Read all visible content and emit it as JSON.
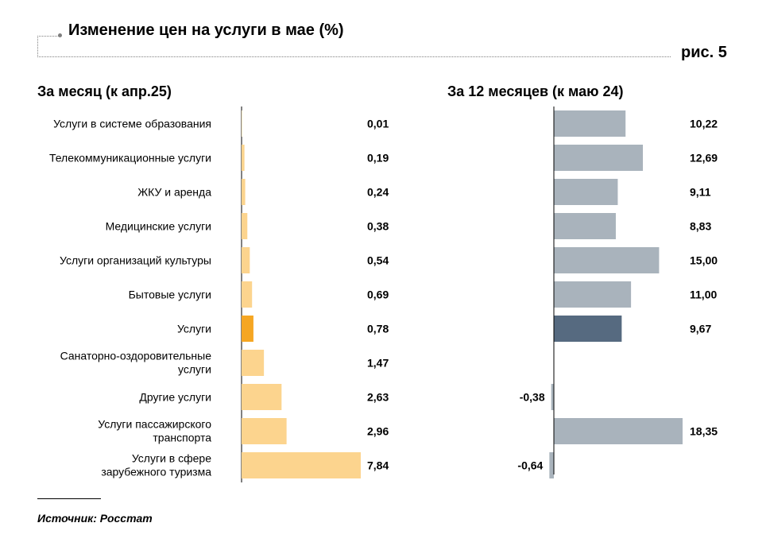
{
  "header": {
    "title": "Изменение цен на услуги в мае (%)",
    "figure_label": "рис. 5"
  },
  "footer": {
    "source": "Источник: Росстат"
  },
  "colors": {
    "monthly_bar": "#fcd48e",
    "monthly_highlight": "#f5a623",
    "yearly_bar": "#a9b3bc",
    "yearly_highlight": "#566a80",
    "axis": "#000000"
  },
  "chart_data": [
    {
      "type": "bar",
      "orientation": "horizontal",
      "title": "За месяц (к апр.25)",
      "categories": [
        "Услуги в системе образования",
        "Телекоммуникационные услуги",
        "ЖКУ и аренда",
        "Медицинские услуги",
        "Услуги организаций культуры",
        "Бытовые услуги",
        "Услуги",
        "Санаторно-оздоровительные услуги",
        "Другие услуги",
        "Услуги пассажирского транспорта",
        "Услуги в сфере зарубежного туризма"
      ],
      "values": [
        0.01,
        0.19,
        0.24,
        0.38,
        0.54,
        0.69,
        0.78,
        1.47,
        2.63,
        2.96,
        7.84
      ],
      "value_labels": [
        "0,01",
        "0,19",
        "0,24",
        "0,38",
        "0,54",
        "0,69",
        "0,78",
        "1,47",
        "2,63",
        "2,96",
        "7,84"
      ],
      "highlight_index": 6,
      "xlim": [
        0,
        8.0
      ],
      "grid": false
    },
    {
      "type": "bar",
      "orientation": "horizontal",
      "title": "За 12 месяцев (к маю 24)",
      "categories": [
        "Услуги в системе образования",
        "Телекоммуникационные услуги",
        "ЖКУ и аренда",
        "Медицинские услуги",
        "Услуги организаций культуры",
        "Бытовые услуги",
        "Услуги",
        "Санаторно-оздоровительные услуги",
        "Другие услуги",
        "Услуги пассажирского транспорта",
        "Услуги в сфере зарубежного туризма"
      ],
      "values": [
        10.22,
        12.69,
        9.11,
        8.83,
        15.0,
        11.0,
        9.67,
        null,
        -0.38,
        18.35,
        -0.64
      ],
      "value_labels": [
        "10,22",
        "12,69",
        "9,11",
        "8,83",
        "15,00",
        "11,00",
        "9,67",
        "",
        "-0,38",
        "18,35",
        "-0,64"
      ],
      "highlight_index": 6,
      "xlim": [
        -1,
        19
      ],
      "grid": false
    }
  ]
}
